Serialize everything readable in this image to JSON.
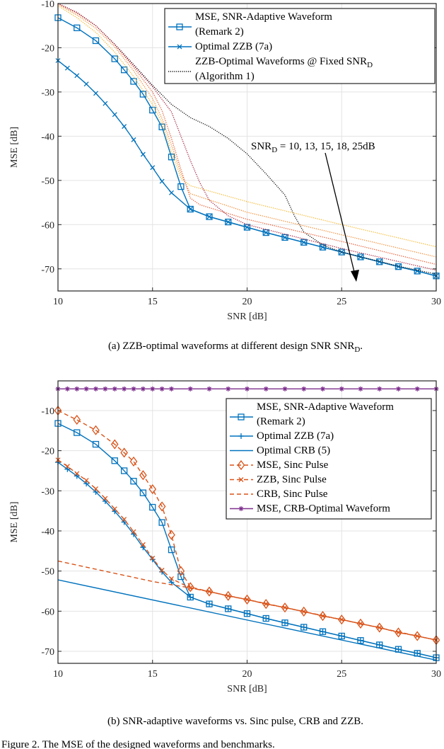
{
  "figure_caption": "Figure 2.  The MSE of the designed waveforms and benchmarks.",
  "colors": {
    "blue": "#0072BD",
    "orange": "#D95319",
    "purple": "#7E2F8E",
    "snr10": "#F5B82E",
    "snr13": "#F08A30",
    "snr15": "#E4572E",
    "snr18": "#A3203F",
    "snr25": "#111111"
  },
  "chart_data": [
    {
      "type": "line",
      "caption": "(a) ZZB-optimal waveforms at different design SNR SNR",
      "caption_sub": "D",
      "caption_end": ".",
      "xlabel": "SNR [dB]",
      "ylabel": "MSE [dB]",
      "xlim": [
        10,
        30
      ],
      "ylim": [
        -75,
        -10
      ],
      "xticks": [
        "10",
        "15",
        "20",
        "25",
        "30"
      ],
      "yticks": [
        "-10",
        "-20",
        "-30",
        "-40",
        "-50",
        "-60",
        "-70"
      ],
      "grid": true,
      "legend_position": "top-right",
      "annotation": {
        "text": "SNR",
        "sub": "D",
        "rest": " = 10, 13, 15, 18, 25dB"
      },
      "series": [
        {
          "name": "MSE, SNR-Adaptive Waveform",
          "name2": "(Remark 2)",
          "color": "blue",
          "marker": "square",
          "style": "solid",
          "legend": true,
          "x": [
            10,
            11,
            12,
            13,
            13.5,
            14,
            14.5,
            15,
            15.5,
            16,
            16.5,
            17,
            18,
            19,
            20,
            21,
            22,
            23,
            24,
            25,
            26,
            27,
            28,
            29,
            30
          ],
          "y": [
            -13.2,
            -15.5,
            -18.4,
            -22.5,
            -25,
            -27.6,
            -30.5,
            -34.1,
            -37.9,
            -44.7,
            -51.4,
            -56.5,
            -58.2,
            -59.4,
            -60.6,
            -61.8,
            -62.9,
            -64.0,
            -65.1,
            -66.2,
            -67.3,
            -68.4,
            -69.5,
            -70.5,
            -71.6
          ]
        },
        {
          "name": "Optimal ZZB (7a)",
          "color": "blue",
          "marker": "x",
          "style": "solid",
          "legend": true,
          "x": [
            10,
            10.5,
            11,
            11.5,
            12,
            12.5,
            13,
            13.5,
            14,
            14.5,
            15,
            15.5,
            16,
            17,
            18,
            19,
            20,
            21,
            22,
            23,
            24,
            25,
            26,
            27,
            28,
            29,
            30
          ],
          "y": [
            -22.9,
            -24.6,
            -26.3,
            -28.2,
            -30.3,
            -32.6,
            -35.1,
            -37.8,
            -40.8,
            -44.1,
            -47.1,
            -50.2,
            -52.8,
            -56.5,
            -58.2,
            -59.4,
            -60.6,
            -61.8,
            -62.9,
            -64.0,
            -65.1,
            -66.2,
            -67.3,
            -68.4,
            -69.5,
            -70.5,
            -71.6
          ]
        },
        {
          "name": "ZZB-Optimal Waveforms @ Fixed SNR",
          "name_sub": "D",
          "name2": "(Algorithm 1)",
          "color": "snr25",
          "marker": "none",
          "style": "dotted",
          "legend": true,
          "x": [
            10,
            11,
            12,
            13,
            14,
            15,
            16,
            17,
            18,
            19,
            20,
            21,
            22,
            22.5,
            23,
            24,
            25,
            26,
            27,
            28,
            29,
            30
          ],
          "y": [
            -10,
            -12,
            -15,
            -19.2,
            -23.8,
            -28.5,
            -32.8,
            -35.8,
            -37.8,
            -40.5,
            -44,
            -48.5,
            -53.3,
            -58,
            -61.7,
            -64.6,
            -66.2,
            -67.3,
            -68.3,
            -69.4,
            -70.3,
            -71.2
          ]
        },
        {
          "color": "snr10",
          "marker": "none",
          "style": "dotted",
          "legend": false,
          "x": [
            10,
            11,
            12,
            13,
            14,
            15,
            15.5,
            16,
            16.5,
            17,
            20,
            25,
            30
          ],
          "y": [
            -10.5,
            -13.2,
            -16.5,
            -21,
            -26.5,
            -32.8,
            -37,
            -43.5,
            -49.5,
            -51.2,
            -54.8,
            -60,
            -65
          ]
        },
        {
          "color": "snr13",
          "marker": "none",
          "style": "dotted",
          "legend": false,
          "x": [
            10,
            11,
            12,
            13,
            14,
            15,
            15.5,
            16,
            16.5,
            17,
            20,
            25,
            30
          ],
          "y": [
            -10.2,
            -12.6,
            -15.6,
            -19.8,
            -25.2,
            -31.5,
            -36,
            -42,
            -48.5,
            -53,
            -57.2,
            -62.3,
            -67.3
          ]
        },
        {
          "color": "snr15",
          "marker": "none",
          "style": "dotted",
          "legend": false,
          "x": [
            10,
            11,
            12,
            13,
            14,
            15,
            15.5,
            16,
            16.5,
            17,
            17.5,
            20,
            25,
            30
          ],
          "y": [
            -10,
            -12.2,
            -15,
            -19.3,
            -24.4,
            -30,
            -34.2,
            -40.5,
            -47.5,
            -54,
            -55.5,
            -58.8,
            -63.8,
            -69
          ]
        },
        {
          "color": "snr18",
          "marker": "none",
          "style": "dotted",
          "legend": false,
          "x": [
            10,
            11,
            12,
            13,
            14,
            15,
            16,
            16.5,
            17,
            17.5,
            18,
            19,
            20,
            25,
            30
          ],
          "y": [
            -10,
            -12,
            -15,
            -19.3,
            -24,
            -28.8,
            -34.5,
            -40,
            -45.5,
            -50.5,
            -54.5,
            -58,
            -60,
            -65.4,
            -70.3
          ]
        }
      ]
    },
    {
      "type": "line",
      "caption": "(b) SNR-adaptive waveforms vs. Sinc pulse, CRB and ZZB.",
      "xlabel": "SNR [dB]",
      "ylabel": "MSE [dB]",
      "xlim": [
        10,
        30
      ],
      "ylim": [
        -73,
        -2.6
      ],
      "xticks": [
        "10",
        "15",
        "20",
        "25",
        "30"
      ],
      "yticks": [
        "-10",
        "-20",
        "-30",
        "-40",
        "-50",
        "-60",
        "-70"
      ],
      "grid": true,
      "legend_position": "top-right",
      "series": [
        {
          "name": "MSE, SNR-Adaptive Waveform",
          "name2": "(Remark 2)",
          "color": "blue",
          "marker": "square",
          "style": "solid",
          "legend": true,
          "x": [
            10,
            11,
            12,
            13,
            13.5,
            14,
            14.5,
            15,
            15.5,
            16,
            16.5,
            17,
            18,
            19,
            20,
            21,
            22,
            23,
            24,
            25,
            26,
            27,
            28,
            29,
            30
          ],
          "y": [
            -13.2,
            -15.5,
            -18.4,
            -22.5,
            -25,
            -27.6,
            -30.5,
            -34.1,
            -37.9,
            -44.7,
            -51.4,
            -56.5,
            -58.2,
            -59.4,
            -60.6,
            -61.8,
            -62.9,
            -64.0,
            -65.1,
            -66.2,
            -67.3,
            -68.4,
            -69.5,
            -70.5,
            -71.6
          ]
        },
        {
          "name": "Optimal ZZB (7a)",
          "color": "blue",
          "marker": "plus",
          "style": "solid",
          "legend": true,
          "x": [
            10,
            10.5,
            11,
            11.5,
            12,
            12.5,
            13,
            13.5,
            14,
            14.5,
            15,
            15.5,
            16,
            17,
            18,
            19,
            20,
            21,
            22,
            23,
            24,
            25,
            26,
            27,
            28,
            29,
            30
          ],
          "y": [
            -22.9,
            -24.6,
            -26.3,
            -28.2,
            -30.3,
            -32.6,
            -35.1,
            -37.8,
            -40.8,
            -44.1,
            -47.1,
            -50.2,
            -52.8,
            -56.5,
            -58.2,
            -59.4,
            -60.6,
            -61.8,
            -62.9,
            -64.0,
            -65.1,
            -66.2,
            -67.3,
            -68.4,
            -69.5,
            -70.5,
            -71.6
          ]
        },
        {
          "name": "Optimal CRB (5)",
          "color": "blue",
          "marker": "none",
          "style": "solid",
          "legend": true,
          "x": [
            10,
            30
          ],
          "y": [
            -52.2,
            -72.2
          ]
        },
        {
          "name": "MSE, Sinc Pulse",
          "color": "orange",
          "marker": "diamond",
          "style": "dashed",
          "legend": true,
          "x": [
            10,
            11,
            12,
            13,
            13.5,
            14,
            14.5,
            15,
            15.5,
            16,
            16.5,
            17,
            18,
            19,
            20,
            21,
            22,
            23,
            24,
            25,
            26,
            27,
            28,
            29,
            30
          ],
          "y": [
            -10,
            -12.3,
            -14.9,
            -18.4,
            -20.5,
            -22.7,
            -26.1,
            -29.6,
            -33.9,
            -41,
            -50,
            -54,
            -55.1,
            -56.2,
            -57.1,
            -58.2,
            -59.1,
            -60.1,
            -61.2,
            -62.1,
            -63.1,
            -64.1,
            -65.3,
            -66.2,
            -67.2
          ]
        },
        {
          "name": "ZZB, Sinc Pulse",
          "color": "orange",
          "marker": "x",
          "style": "dashed",
          "legend": true,
          "x": [
            10,
            10.5,
            11,
            11.5,
            12,
            12.5,
            13,
            13.5,
            14,
            14.5,
            15,
            15.5,
            16,
            17,
            18,
            19,
            20,
            21,
            22,
            23,
            24,
            25,
            26,
            27,
            28,
            29,
            30
          ],
          "y": [
            -22.3,
            -23.9,
            -25.7,
            -27.4,
            -29.5,
            -31.9,
            -34.5,
            -37.1,
            -40.2,
            -43.4,
            -46.8,
            -49.8,
            -51.9,
            -54.2,
            -55.1,
            -56.2,
            -57.1,
            -58.2,
            -59.1,
            -60.1,
            -61.2,
            -62.1,
            -63.1,
            -64.1,
            -65.3,
            -66.2,
            -67.2
          ]
        },
        {
          "name": "CRB, Sinc Pulse",
          "color": "orange",
          "marker": "none",
          "style": "dashed",
          "legend": true,
          "x": [
            10,
            15,
            17,
            20,
            25,
            30
          ],
          "y": [
            -47.5,
            -52.6,
            -54.2,
            -57.1,
            -62.1,
            -67.2
          ]
        },
        {
          "name": "MSE, CRB-Optimal Waveform",
          "color": "purple",
          "marker": "star",
          "style": "solid",
          "legend": true,
          "x": [
            10,
            10.5,
            11,
            11.5,
            12,
            12.5,
            13,
            13.5,
            14,
            14.5,
            15,
            15.5,
            16,
            17,
            18,
            19,
            20,
            21,
            22,
            23,
            24,
            25,
            26,
            27,
            28,
            29,
            30
          ],
          "y": [
            -4.6,
            -4.6,
            -4.6,
            -4.6,
            -4.6,
            -4.6,
            -4.6,
            -4.6,
            -4.6,
            -4.6,
            -4.6,
            -4.6,
            -4.6,
            -4.6,
            -4.6,
            -4.6,
            -4.6,
            -4.6,
            -4.6,
            -4.6,
            -4.6,
            -4.6,
            -4.6,
            -4.6,
            -4.6,
            -4.6,
            -4.6
          ]
        }
      ]
    }
  ]
}
